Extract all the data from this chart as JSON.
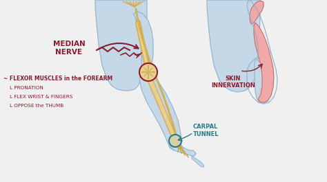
{
  "bg_color": "#f0f0f0",
  "body_fill": "#c5d8e8",
  "body_stroke": "#90b0c8",
  "nerve_color": "#c8a040",
  "bone_color": "#d4b060",
  "skin_innervation_color": "#f0a8a8",
  "skin_edge_color": "#c07070",
  "annotation_color": "#8b1a2a",
  "circle_color": "#8b1a2a",
  "teal_color": "#2a7a8a",
  "labels": {
    "median_nerve": "MEDIAN\nNERVE",
    "flexor_title": "~ FLEXOR MUSCLES in the FOREARM",
    "pronation": "L PRONATION",
    "flex_wrist": "L FLEX WRIST & FINGERS",
    "oppose": "L OPPOSE the THUMB",
    "skin_innervation": "SKIN\nINNERVATION",
    "carpal_tunnel": "CARPAL\nTUNNEL"
  }
}
